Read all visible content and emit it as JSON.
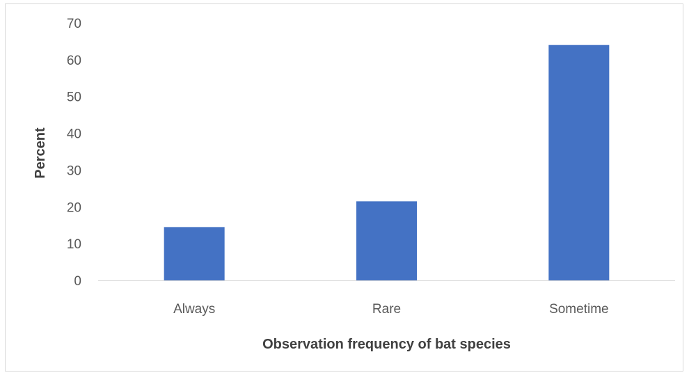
{
  "chart_data": {
    "type": "bar",
    "categories": [
      "Always",
      "Rare",
      "Sometime"
    ],
    "values": [
      14.5,
      21.5,
      64
    ],
    "title": "",
    "xlabel": "Observation frequency of bat species",
    "ylabel": "Percent",
    "ylim": [
      0,
      70
    ],
    "yticks": [
      "0",
      "10",
      "20",
      "30",
      "40",
      "50",
      "60",
      "70"
    ],
    "grid": false,
    "legend": "none",
    "bar_color": "#4472c4",
    "axis_color": "#d9d9d9"
  }
}
